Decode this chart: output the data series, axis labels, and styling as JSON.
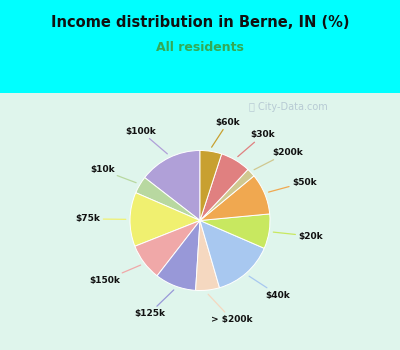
{
  "title": "Income distribution in Berne, IN (%)",
  "subtitle": "All residents",
  "watermark": "ⓘ City-Data.com",
  "labels": [
    "$100k",
    "$10k",
    "$75k",
    "$150k",
    "$125k",
    "> $200k",
    "$40k",
    "$20k",
    "$50k",
    "$200k",
    "$30k",
    "$60k"
  ],
  "values": [
    14.5,
    4.0,
    12.5,
    8.5,
    9.5,
    5.5,
    14.0,
    8.0,
    9.5,
    2.0,
    7.0,
    5.0
  ],
  "colors": [
    "#b0a0d8",
    "#b8d8a0",
    "#f0f070",
    "#f0a8a8",
    "#9898d8",
    "#f5d8c0",
    "#a8c8f0",
    "#c8e860",
    "#f0a850",
    "#d0c890",
    "#e08080",
    "#c8a030"
  ],
  "bg_top": "#00ffff",
  "bg_chart": "#dff5ec",
  "title_color": "#111111",
  "subtitle_color": "#33aa55",
  "startangle": 90
}
